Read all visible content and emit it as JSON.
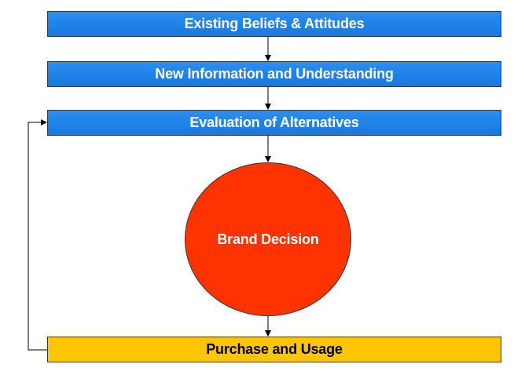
{
  "diagram": {
    "steps": [
      {
        "label": "Existing Beliefs & Attitudes",
        "color": "#1a7fe8"
      },
      {
        "label": "New Information and Understanding",
        "color": "#1a7fe8"
      },
      {
        "label": "Evaluation of Alternatives",
        "color": "#1a7fe8"
      }
    ],
    "decision": {
      "label": "Brand Decision",
      "color": "#ff3300"
    },
    "outcome": {
      "label": "Purchase and Usage",
      "color": "#ffc600"
    },
    "connector_color": "#000000"
  }
}
